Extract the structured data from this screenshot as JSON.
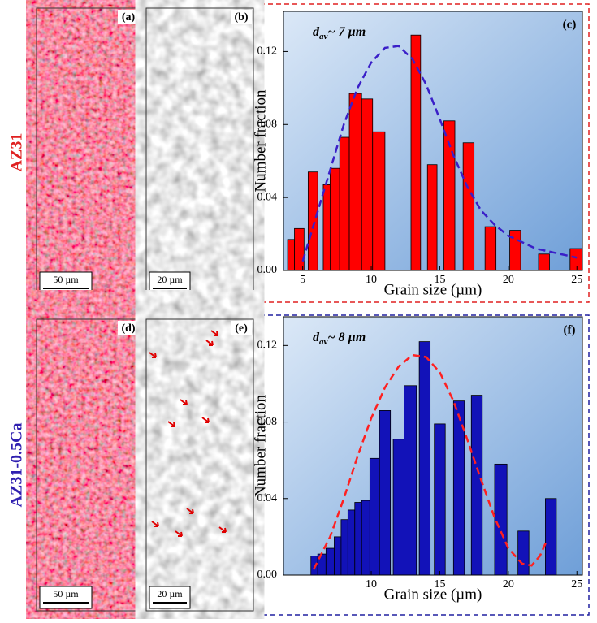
{
  "figure": {
    "groups": [
      {
        "name": "AZ31",
        "panels": [
          {
            "label": "(a)",
            "scale": "50 µm"
          },
          {
            "label": "(b)",
            "scale": "20 µm"
          }
        ]
      },
      {
        "name": "AZ31-0.5Ca",
        "panels": [
          {
            "label": "(d)",
            "scale": "50 µm"
          },
          {
            "label": "(e)",
            "scale": "20 µm"
          }
        ]
      }
    ]
  },
  "chart_data": [
    {
      "type": "histogram",
      "panel_label": "(c)",
      "annotation": {
        "main": "d",
        "sub": "av",
        "rest": "~ 7 µm"
      },
      "x_label": "Grain size (µm)",
      "y_label": "Number fraction",
      "color": "#ff0000",
      "bins": [
        3.9,
        4.4,
        5.1,
        5.4,
        6.1,
        6.5,
        7.0,
        7.7,
        8.4,
        9.3,
        10.1,
        11.0,
        12.9,
        13.6,
        14.1,
        14.8,
        15.3,
        16.1,
        16.7,
        17.5,
        18.3,
        19.1,
        20.1,
        20.9,
        22.2,
        23.0,
        24.5,
        25.4
      ],
      "counts": [
        0.017,
        0.023,
        0,
        0.054,
        0,
        0.047,
        0.056,
        0.073,
        0.097,
        0.094,
        0.076,
        0,
        0.129,
        0,
        0.058,
        0,
        0.082,
        0,
        0.07,
        0,
        0.024,
        0,
        0.022,
        0,
        0.009,
        0,
        0.012
      ],
      "fit": {
        "color": "#3a1fc8",
        "x": [
          5,
          6,
          7,
          8,
          9,
          10,
          11,
          12,
          13,
          14,
          15,
          16,
          17,
          18,
          19,
          20,
          22,
          25
        ],
        "values": [
          0.005,
          0.03,
          0.055,
          0.08,
          0.1,
          0.114,
          0.122,
          0.123,
          0.116,
          0.102,
          0.083,
          0.063,
          0.046,
          0.033,
          0.025,
          0.019,
          0.012,
          0.007
        ]
      },
      "xlim": [
        3.6,
        25.4
      ],
      "ylim": [
        0,
        0.142
      ],
      "xticks": [
        5,
        10,
        15,
        20,
        25
      ],
      "yticks": [
        {
          "value": 0,
          "label": "0.00"
        },
        {
          "value": 0.04,
          "label": "0.04"
        },
        {
          "value": 0.08,
          "label": "0.08"
        },
        {
          "value": 0.12,
          "label": "0.12"
        }
      ]
    },
    {
      "type": "histogram",
      "panel_label": "(f)",
      "annotation": {
        "main": "d",
        "sub": "av",
        "rest": "~ 8 µm"
      },
      "x_label": "Grain size (µm)",
      "y_label": "Number fraction",
      "color": "#1212b8",
      "bins": [
        5.6,
        6.1,
        6.7,
        7.3,
        7.8,
        8.3,
        8.8,
        9.3,
        9.9,
        10.6,
        11.4,
        11.6,
        12.4,
        13.3,
        13.5,
        14.3,
        14.6,
        15.4,
        16.0,
        16.8,
        17.3,
        18.1,
        19.0,
        19.9,
        20.7,
        21.5,
        22.7,
        23.5
      ],
      "counts": [
        0.01,
        0.011,
        0.014,
        0.02,
        0.029,
        0.034,
        0.038,
        0.039,
        0.061,
        0.086,
        0,
        0.071,
        0.099,
        0,
        0.122,
        0,
        0.079,
        0,
        0.091,
        0,
        0.094,
        0,
        0.058,
        0,
        0.023,
        0,
        0.04
      ],
      "fit": {
        "color": "#ff2020",
        "x": [
          5.8,
          7,
          8,
          9,
          10,
          11,
          12,
          13,
          14,
          15,
          16,
          17,
          18,
          19,
          20,
          21,
          21.7,
          22.3,
          22.8
        ],
        "values": [
          0.003,
          0.02,
          0.04,
          0.062,
          0.082,
          0.098,
          0.109,
          0.115,
          0.114,
          0.106,
          0.091,
          0.071,
          0.05,
          0.03,
          0.014,
          0.006,
          0.005,
          0.01,
          0.018
        ]
      },
      "xlim": [
        3.6,
        25.4
      ],
      "ylim": [
        0,
        0.135
      ],
      "xticks": [
        10,
        15,
        20,
        25
      ],
      "yticks": [
        {
          "value": 0,
          "label": "0.00"
        },
        {
          "value": 0.04,
          "label": "0.04"
        },
        {
          "value": 0.08,
          "label": "0.08"
        },
        {
          "value": 0.12,
          "label": "0.12"
        }
      ]
    }
  ]
}
